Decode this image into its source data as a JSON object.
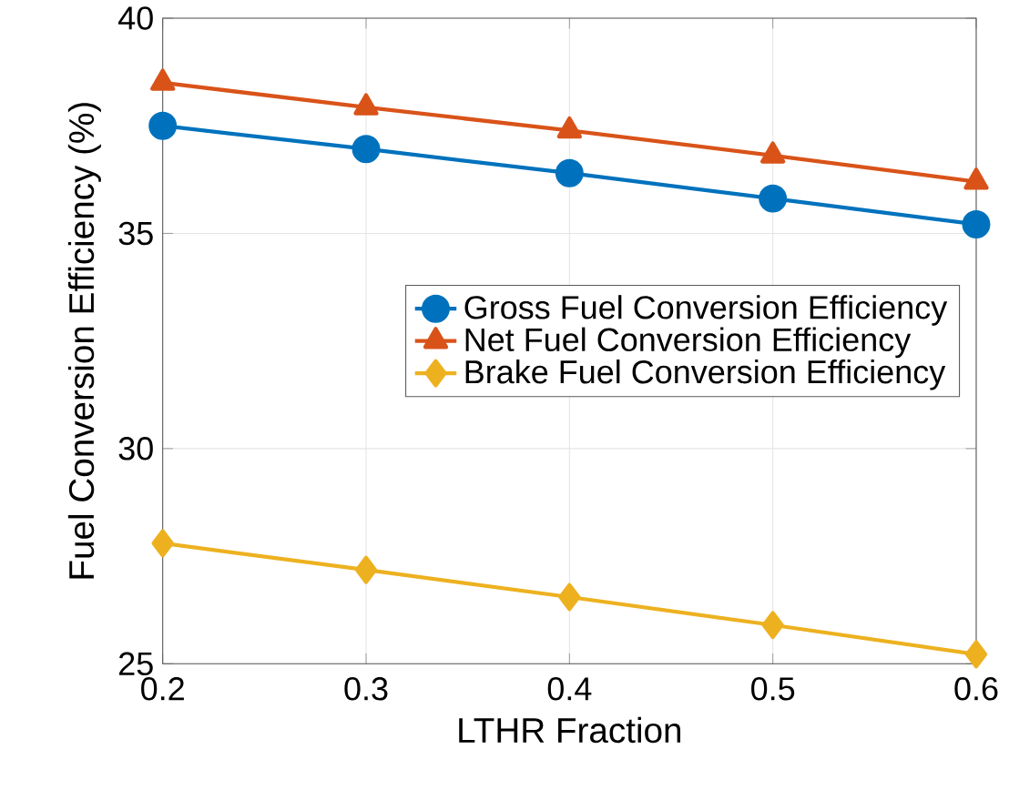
{
  "chart_data": {
    "type": "line",
    "xlabel": "LTHR Fraction",
    "ylabel": "Fuel Conversion Efficiency (%)",
    "x": [
      0.2,
      0.3,
      0.4,
      0.5,
      0.6
    ],
    "series": [
      {
        "name": "Gross Fuel Conversion Efficiency",
        "color": "#0072bd",
        "marker": "circle",
        "values": [
          37.5,
          36.96,
          36.4,
          35.81,
          35.21
        ]
      },
      {
        "name": "Net Fuel Conversion Efficiency",
        "color": "#d95319",
        "marker": "triangle",
        "values": [
          38.5,
          37.93,
          37.39,
          36.81,
          36.2
        ]
      },
      {
        "name": "Brake Fuel Conversion Efficiency",
        "color": "#edb120",
        "marker": "diamond",
        "values": [
          27.8,
          27.18,
          26.55,
          25.9,
          25.22
        ]
      }
    ],
    "xlim": [
      0.2,
      0.6
    ],
    "xticks": [
      0.2,
      0.3,
      0.4,
      0.5,
      0.6
    ],
    "ylim": [
      25,
      40
    ],
    "yticks": [
      25,
      30,
      35,
      40
    ],
    "grid": true,
    "legend": "right",
    "line_style": "solid"
  }
}
